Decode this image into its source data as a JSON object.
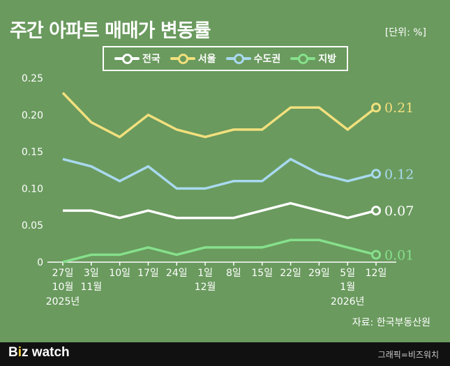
{
  "header": {
    "title": "주간 아파트 매매가 변동률",
    "unit": "[단위: %]"
  },
  "legend": [
    {
      "label": "전국",
      "color": "#ffffff"
    },
    {
      "label": "서울",
      "color": "#f2e07d"
    },
    {
      "label": "수도권",
      "color": "#a9d9ef"
    },
    {
      "label": "지방",
      "color": "#86e08c"
    }
  ],
  "chart_data": {
    "type": "line",
    "title": "주간 아파트 매매가 변동률",
    "ylabel": "[단위: %]",
    "ylim": [
      0,
      0.25
    ],
    "yticks": [
      "0",
      "0.05",
      "0.10",
      "0.15",
      "0.20",
      "0.25"
    ],
    "categories": [
      "27일",
      "3일",
      "10일",
      "17일",
      "24일",
      "1일",
      "8일",
      "15일",
      "22일",
      "29일",
      "5일",
      "12일"
    ],
    "category_sublabels": [
      "10월",
      "11월",
      "",
      "",
      "",
      "12월",
      "",
      "",
      "",
      "",
      "1월",
      ""
    ],
    "year_labels": [
      {
        "index": 0,
        "label": "2025년"
      },
      {
        "index": 10,
        "label": "2026년"
      }
    ],
    "series": [
      {
        "name": "서울",
        "color": "#f2e07d",
        "values": [
          0.23,
          0.19,
          0.17,
          0.2,
          0.18,
          0.17,
          0.18,
          0.18,
          0.21,
          0.21,
          0.18,
          0.21
        ],
        "end_label": "0.21"
      },
      {
        "name": "수도권",
        "color": "#a9d9ef",
        "values": [
          0.14,
          0.13,
          0.11,
          0.13,
          0.1,
          0.1,
          0.11,
          0.11,
          0.14,
          0.12,
          0.11,
          0.12
        ],
        "end_label": "0.12"
      },
      {
        "name": "전국",
        "color": "#ffffff",
        "values": [
          0.07,
          0.07,
          0.06,
          0.07,
          0.06,
          0.06,
          0.06,
          0.07,
          0.08,
          0.07,
          0.06,
          0.07
        ],
        "end_label": "0.07"
      },
      {
        "name": "지방",
        "color": "#86e08c",
        "values": [
          0.0,
          0.01,
          0.01,
          0.02,
          0.01,
          0.02,
          0.02,
          0.02,
          0.03,
          0.03,
          0.02,
          0.01
        ],
        "end_label": "0.01"
      }
    ]
  },
  "source": "자료: 한국부동산원",
  "footer": {
    "brand_b": "B",
    "brand_i": "i",
    "brand_rest": "z watch",
    "credit": "그래픽=비즈워치"
  }
}
